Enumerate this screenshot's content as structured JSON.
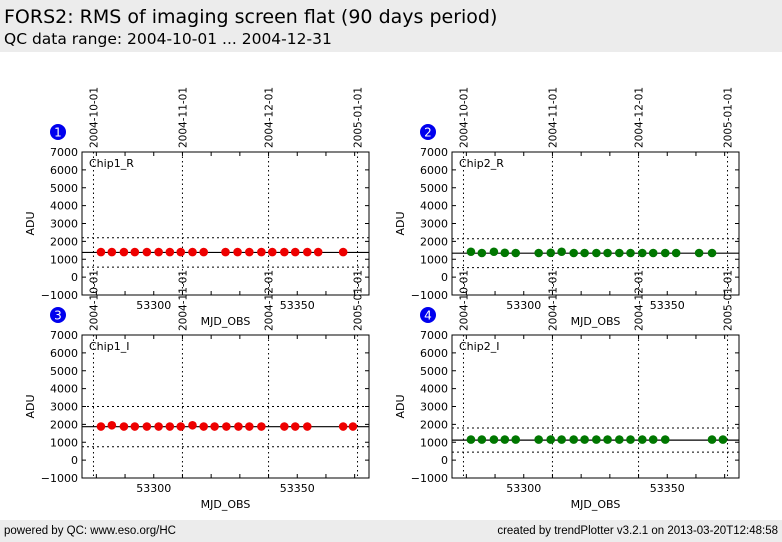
{
  "header": {
    "title": "FORS2: RMS of imaging screen flat (90 days period)",
    "subtitle": "QC data range: 2004-10-01 ... 2004-12-31"
  },
  "footer": {
    "left": "powered by QC: www.eso.org/HC",
    "right": "created by trendPlotter v3.2.1 on 2013-03-20T12:48:58"
  },
  "colors": {
    "header_bg": "#ececec",
    "badge": "#0000ee",
    "red_points": "#ee0000",
    "green_points": "#007700"
  },
  "chart_data": [
    {
      "type": "scatter",
      "panel_number": "1",
      "label": "Chip1_R",
      "xlabel": "MJD_OBS",
      "ylabel": "ADU",
      "xlim": [
        53275,
        53375
      ],
      "ylim": [
        -1000,
        7000
      ],
      "xticks": [
        53300,
        53350
      ],
      "yticks": [
        -1000,
        0,
        1000,
        2000,
        3000,
        4000,
        5000,
        6000,
        7000
      ],
      "date_ticks": [
        {
          "label": "2004-10-01",
          "mjd": 53279
        },
        {
          "label": "2004-11-01",
          "mjd": 53310
        },
        {
          "label": "2004-12-01",
          "mjd": 53340
        },
        {
          "label": "2005-01-01",
          "mjd": 53371
        }
      ],
      "color": "#ee0000",
      "mean": 1380,
      "upper_limit": 2200,
      "lower_limit": 560,
      "x": [
        53281.6,
        53285.4,
        53289.6,
        53293.4,
        53297.6,
        53301.7,
        53305.6,
        53309.4,
        53313.5,
        53317.4,
        53325.0,
        53329.2,
        53333.3,
        53337.5,
        53341.3,
        53345.5,
        53349.3,
        53353.5,
        53357.3,
        53366.0
      ],
      "y": [
        1400,
        1400,
        1400,
        1400,
        1400,
        1400,
        1400,
        1400,
        1400,
        1400,
        1400,
        1400,
        1400,
        1400,
        1400,
        1400,
        1400,
        1400,
        1400,
        1400
      ]
    },
    {
      "type": "scatter",
      "panel_number": "2",
      "label": "Chip2_R",
      "xlabel": "MJD_OBS",
      "ylabel": "ADU",
      "xlim": [
        53275,
        53375
      ],
      "ylim": [
        -1000,
        7000
      ],
      "xticks": [
        53300,
        53350
      ],
      "yticks": [
        -1000,
        0,
        1000,
        2000,
        3000,
        4000,
        5000,
        6000,
        7000
      ],
      "date_ticks": [
        {
          "label": "2004-10-01",
          "mjd": 53279
        },
        {
          "label": "2004-11-01",
          "mjd": 53310
        },
        {
          "label": "2004-12-01",
          "mjd": 53340
        },
        {
          "label": "2005-01-01",
          "mjd": 53371
        }
      ],
      "color": "#007700",
      "mean": 1340,
      "upper_limit": 2150,
      "lower_limit": 530,
      "x": [
        53281.6,
        53285.4,
        53289.6,
        53293.4,
        53297.2,
        53305.2,
        53309.4,
        53313.2,
        53317.4,
        53321.2,
        53325.3,
        53329.2,
        53333.3,
        53337.2,
        53341.3,
        53345.1,
        53349.3,
        53353.1,
        53361.1,
        53365.6
      ],
      "y": [
        1420,
        1350,
        1420,
        1360,
        1350,
        1350,
        1360,
        1420,
        1350,
        1350,
        1350,
        1350,
        1350,
        1350,
        1350,
        1350,
        1350,
        1350,
        1350,
        1350
      ]
    },
    {
      "type": "scatter",
      "panel_number": "3",
      "label": "Chip1_I",
      "xlabel": "MJD_OBS",
      "ylabel": "ADU",
      "xlim": [
        53275,
        53375
      ],
      "ylim": [
        -1000,
        7000
      ],
      "xticks": [
        53300,
        53350
      ],
      "yticks": [
        -1000,
        0,
        1000,
        2000,
        3000,
        4000,
        5000,
        6000,
        7000
      ],
      "date_ticks": [
        {
          "label": "2004-10-01",
          "mjd": 53279
        },
        {
          "label": "2004-11-01",
          "mjd": 53310
        },
        {
          "label": "2004-12-01",
          "mjd": 53340
        },
        {
          "label": "2005-01-01",
          "mjd": 53371
        }
      ],
      "color": "#ee0000",
      "mean": 1870,
      "upper_limit": 3000,
      "lower_limit": 750,
      "x": [
        53281.6,
        53285.4,
        53289.6,
        53293.4,
        53297.6,
        53301.7,
        53305.6,
        53309.4,
        53313.5,
        53317.4,
        53321.2,
        53325.3,
        53329.5,
        53333.3,
        53337.5,
        53345.5,
        53349.3,
        53353.5,
        53366.0,
        53369.4
      ],
      "y": [
        1880,
        1950,
        1880,
        1880,
        1880,
        1880,
        1880,
        1880,
        1950,
        1880,
        1880,
        1880,
        1880,
        1880,
        1880,
        1880,
        1880,
        1880,
        1880,
        1880
      ]
    },
    {
      "type": "scatter",
      "panel_number": "4",
      "label": "Chip2_I",
      "xlabel": "MJD_OBS",
      "ylabel": "ADU",
      "xlim": [
        53275,
        53375
      ],
      "ylim": [
        -1000,
        7000
      ],
      "xticks": [
        53300,
        53350
      ],
      "yticks": [
        -1000,
        0,
        1000,
        2000,
        3000,
        4000,
        5000,
        6000,
        7000
      ],
      "date_ticks": [
        {
          "label": "2004-10-01",
          "mjd": 53279
        },
        {
          "label": "2004-11-01",
          "mjd": 53310
        },
        {
          "label": "2004-12-01",
          "mjd": 53340
        },
        {
          "label": "2005-01-01",
          "mjd": 53371
        }
      ],
      "color": "#007700",
      "mean": 1120,
      "upper_limit": 1800,
      "lower_limit": 450,
      "x": [
        53281.6,
        53285.4,
        53289.6,
        53293.4,
        53297.2,
        53305.2,
        53309.4,
        53313.2,
        53317.4,
        53321.2,
        53325.3,
        53329.2,
        53333.3,
        53337.2,
        53341.3,
        53345.1,
        53349.3,
        53365.6,
        53369.4
      ],
      "y": [
        1150,
        1150,
        1150,
        1150,
        1150,
        1150,
        1150,
        1150,
        1150,
        1150,
        1150,
        1150,
        1150,
        1150,
        1150,
        1150,
        1150,
        1150,
        1150
      ]
    }
  ]
}
